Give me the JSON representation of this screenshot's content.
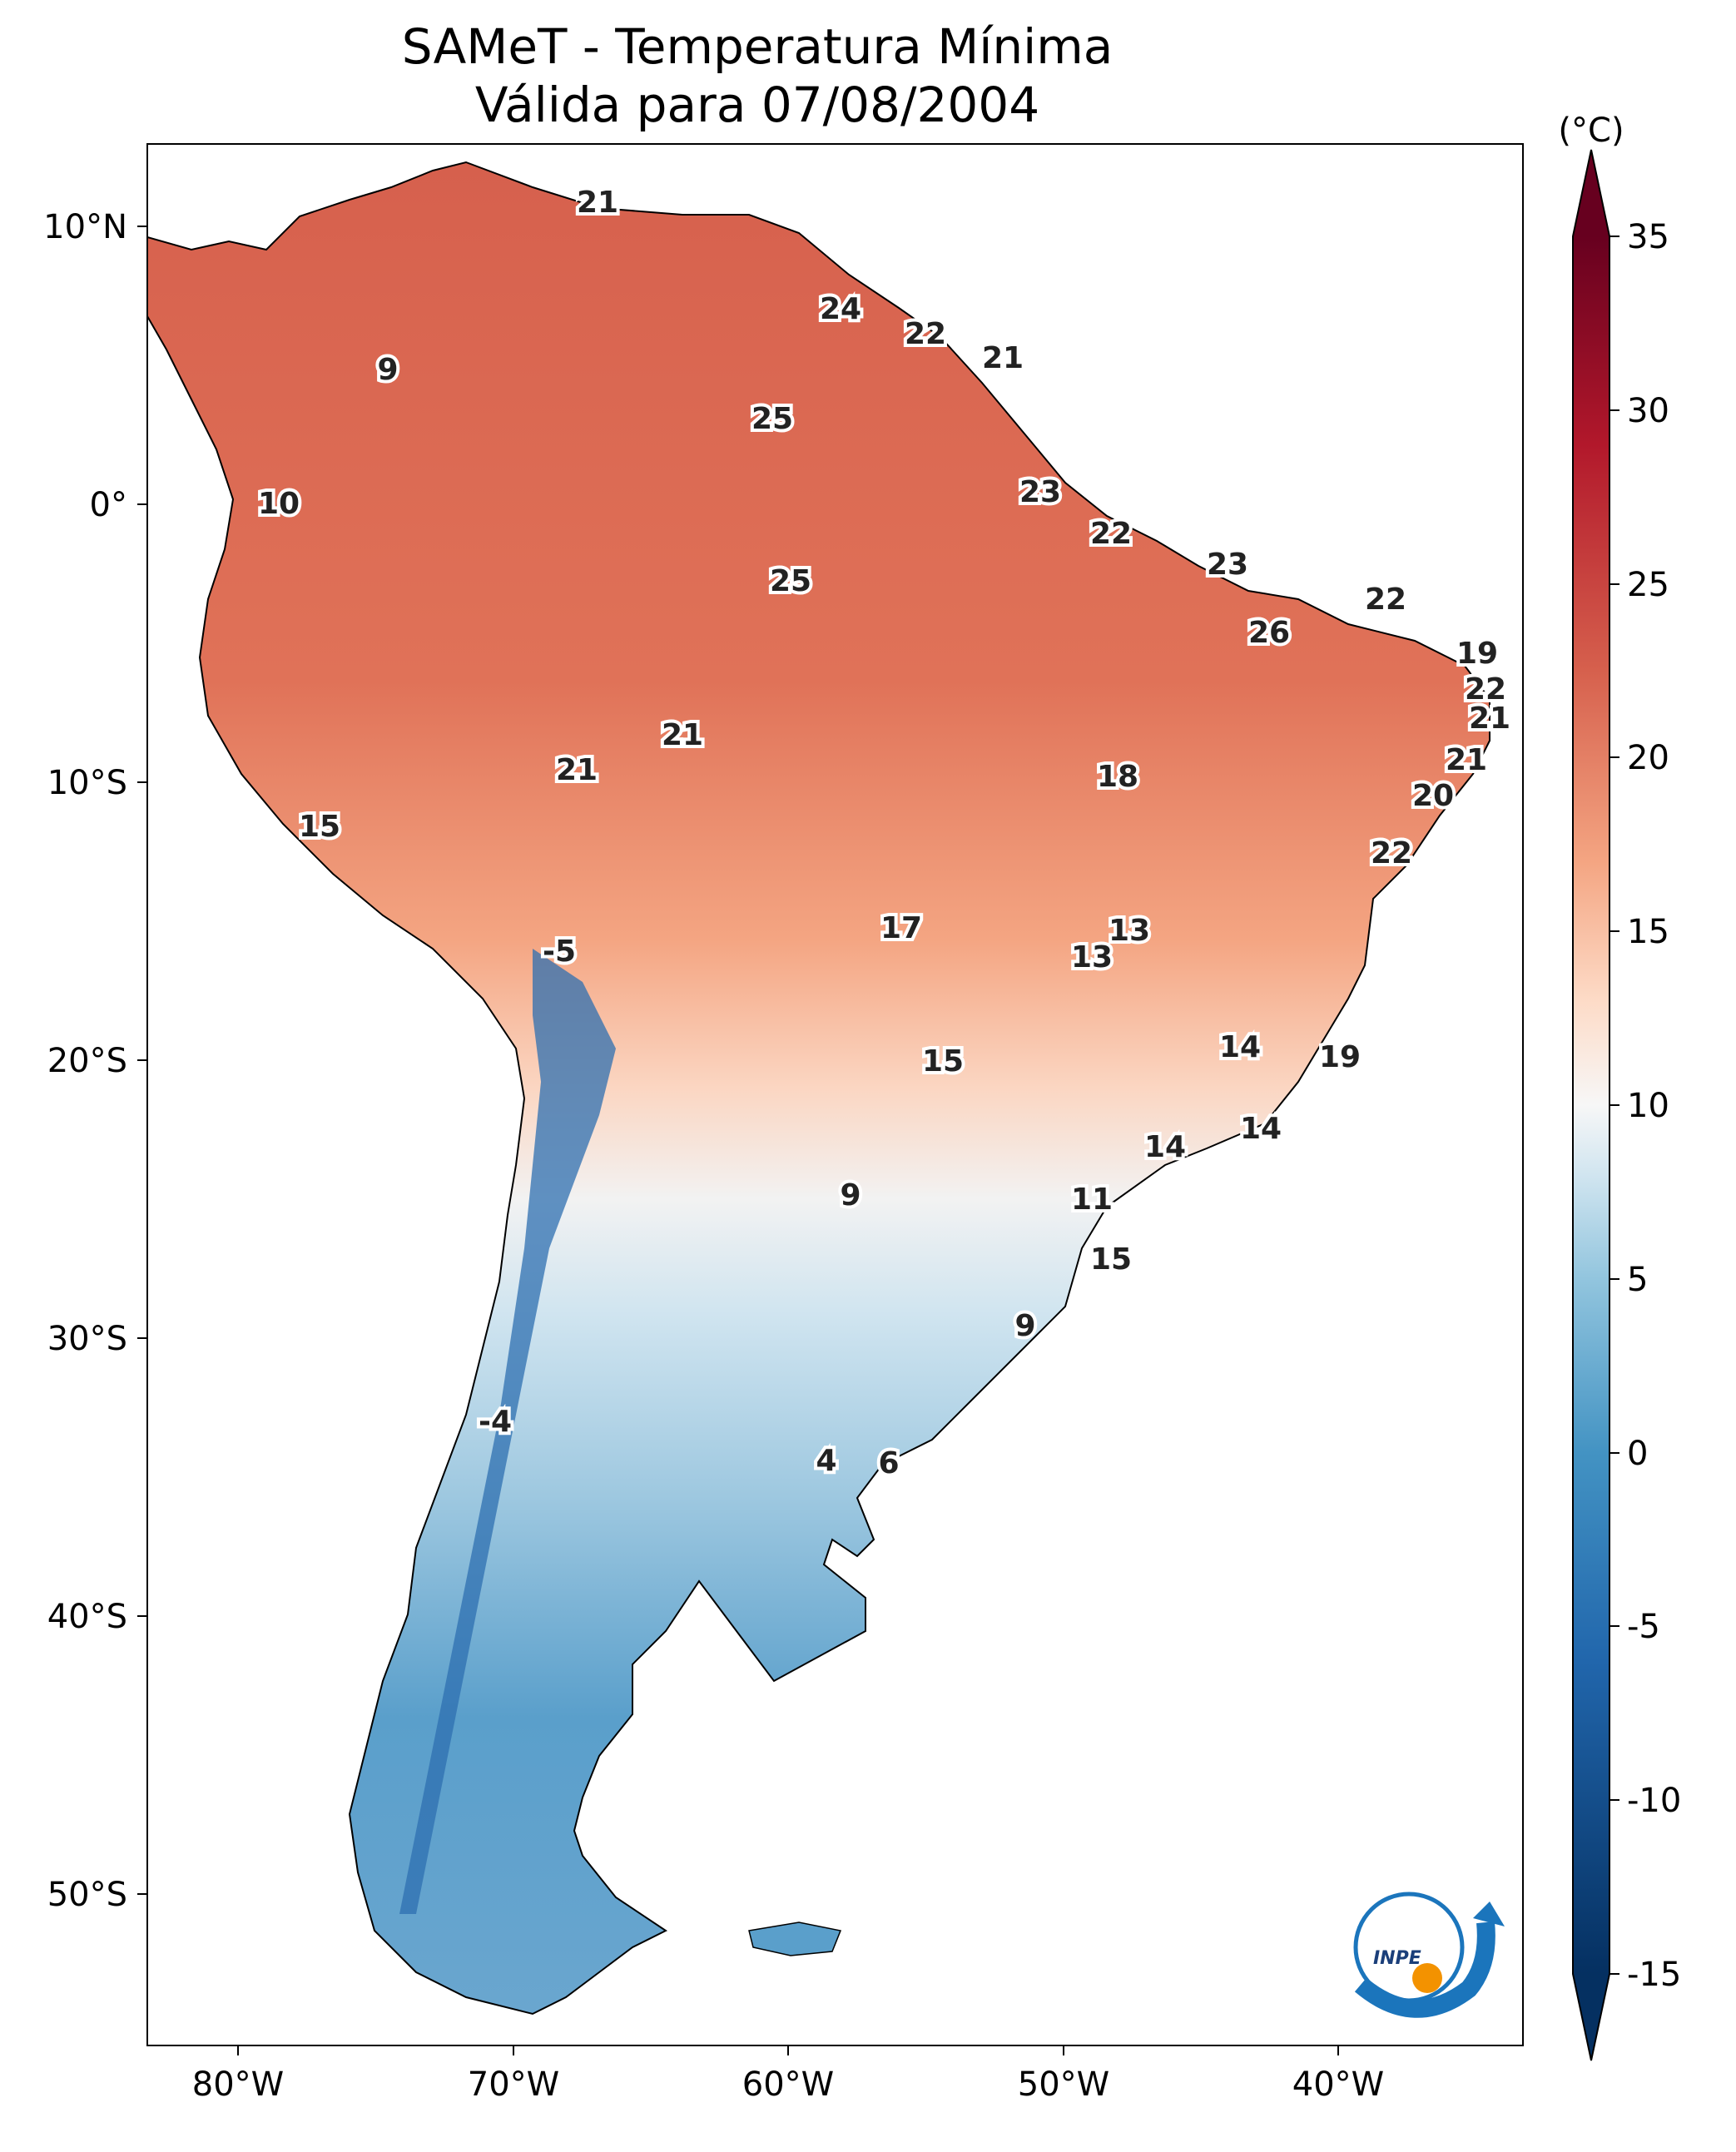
{
  "title": {
    "line1": "SAMeT - Temperatura Mínima",
    "line2": "Válida para 07/08/2004"
  },
  "map": {
    "lon_labels": [
      "80°W",
      "70°W",
      "60°W",
      "50°W",
      "40°W"
    ],
    "lat_labels": [
      "10°N",
      "0°",
      "10°S",
      "20°S",
      "30°S",
      "40°S",
      "50°S"
    ]
  },
  "colorbar": {
    "unit": "(°C)",
    "tick_labels": [
      "35",
      "30",
      "25",
      "20",
      "15",
      "10",
      "5",
      "0",
      "-5",
      "-10",
      "-15"
    ],
    "colors": [
      "#053061",
      "#2166ac",
      "#4393c3",
      "#92c5de",
      "#d1e5f0",
      "#f7f7f7",
      "#fddbc7",
      "#f4a582",
      "#d6604d",
      "#b2182b",
      "#67001f"
    ]
  },
  "temperature_labels": [
    {
      "value": "21"
    },
    {
      "value": "24"
    },
    {
      "value": "22"
    },
    {
      "value": "21"
    },
    {
      "value": "9"
    },
    {
      "value": "25"
    },
    {
      "value": "10"
    },
    {
      "value": "23"
    },
    {
      "value": "22"
    },
    {
      "value": "25"
    },
    {
      "value": "23"
    },
    {
      "value": "22"
    },
    {
      "value": "26"
    },
    {
      "value": "19"
    },
    {
      "value": "22"
    },
    {
      "value": "21"
    },
    {
      "value": "21"
    },
    {
      "value": "21"
    },
    {
      "value": "21"
    },
    {
      "value": "18"
    },
    {
      "value": "20"
    },
    {
      "value": "15"
    },
    {
      "value": "22"
    },
    {
      "value": "17"
    },
    {
      "value": "13"
    },
    {
      "value": "13"
    },
    {
      "value": "-5"
    },
    {
      "value": "15"
    },
    {
      "value": "14"
    },
    {
      "value": "19"
    },
    {
      "value": "14"
    },
    {
      "value": "14"
    },
    {
      "value": "9"
    },
    {
      "value": "11"
    },
    {
      "value": "15"
    },
    {
      "value": "9"
    },
    {
      "value": "-4"
    },
    {
      "value": "4"
    },
    {
      "value": "6"
    }
  ],
  "logo": {
    "text": "INPE"
  }
}
